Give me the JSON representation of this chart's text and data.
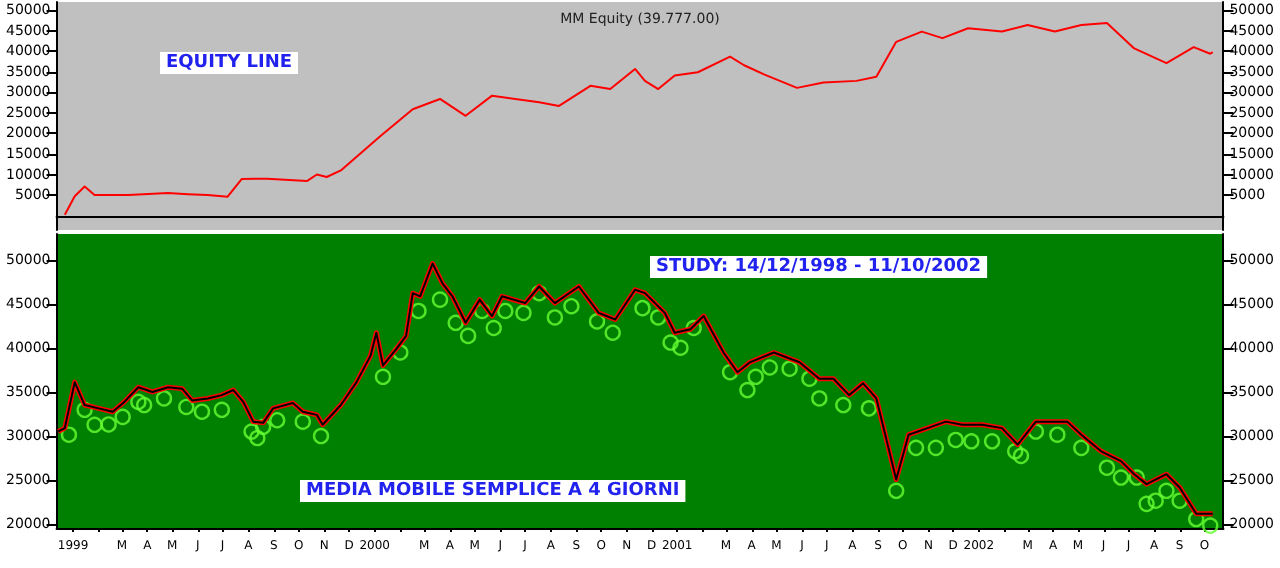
{
  "chart_data": [
    {
      "type": "line",
      "title": "MM Equity (39.777.00)",
      "annotations": [
        "EQUITY LINE"
      ],
      "xlim": [
        "1998-12-12",
        "2002-10-24"
      ],
      "ylim": [
        -3500,
        52000
      ],
      "yticks": [
        5000,
        10000,
        15000,
        20000,
        25000,
        30000,
        35000,
        40000,
        45000,
        50000
      ],
      "y2lim": [
        -3500,
        52000
      ],
      "y2ticks": [
        5000,
        10000,
        15000,
        20000,
        25000,
        30000,
        35000,
        40000,
        45000,
        50000
      ],
      "tick_labels": "y",
      "grid": false,
      "marker": "none",
      "line_style": "solid",
      "series": [
        {
          "color": "#ff0000",
          "x": [
            "1998-12-22",
            "1999-01-03",
            "1999-01-15",
            "1999-01-27",
            "1999-03-09",
            "1999-04-26",
            "1999-05-20",
            "1999-06-13",
            "1999-07-07",
            "1999-07-24",
            "1999-08-24",
            "1999-10-11",
            "1999-10-23",
            "1999-11-04",
            "1999-11-21",
            "2000-01-08",
            "2000-02-16",
            "2000-03-20",
            "2000-04-20",
            "2000-05-22",
            "2000-07-18",
            "2000-08-11",
            "2000-09-18",
            "2000-10-12",
            "2000-11-11",
            "2000-11-23",
            "2000-12-09",
            "2000-12-29",
            "2001-01-26",
            "2001-03-06",
            "2001-03-23",
            "2001-04-16",
            "2001-05-26",
            "2001-06-27",
            "2001-08-06",
            "2001-08-30",
            "2001-09-23",
            "2001-10-24",
            "2001-11-18",
            "2001-12-19",
            "2002-01-29",
            "2002-03-01",
            "2002-04-03",
            "2002-05-05",
            "2002-06-05",
            "2002-07-08",
            "2002-08-16",
            "2002-09-18",
            "2002-10-08",
            "2002-10-11"
          ],
          "values": [
            200,
            4700,
            7100,
            5000,
            5000,
            5500,
            5200,
            5000,
            4600,
            8900,
            9000,
            8400,
            10000,
            9400,
            11000,
            19400,
            25900,
            28400,
            24300,
            29200,
            27600,
            26700,
            31600,
            30800,
            35700,
            32800,
            30800,
            34100,
            34900,
            38700,
            36600,
            34400,
            31100,
            32400,
            32800,
            33800,
            42300,
            44800,
            43200,
            45600,
            44800,
            46400,
            44800,
            46400,
            46900,
            40700,
            37100,
            41000,
            39400,
            39777
          ]
        }
      ]
    },
    {
      "type": "line",
      "annotations": [
        "STUDY: 14/12/1998 - 11/10/2002",
        "MEDIA MOBILE SEMPLICE A 4 GIORNI"
      ],
      "xlim": [
        "1998-12-12",
        "2002-10-24"
      ],
      "xticks": [
        {
          "value": "1999-01-01",
          "label": "1999"
        },
        {
          "value": "1999-02-01",
          "label": null
        },
        {
          "value": "1999-03-01",
          "label": "M"
        },
        {
          "value": "1999-04-01",
          "label": "A"
        },
        {
          "value": "1999-05-01",
          "label": "M"
        },
        {
          "value": "1999-06-01",
          "label": "J"
        },
        {
          "value": "1999-07-01",
          "label": "J"
        },
        {
          "value": "1999-08-01",
          "label": "A"
        },
        {
          "value": "1999-09-01",
          "label": "S"
        },
        {
          "value": "1999-10-01",
          "label": "O"
        },
        {
          "value": "1999-11-01",
          "label": "N"
        },
        {
          "value": "1999-12-01",
          "label": "D"
        },
        {
          "value": "2000-01-01",
          "label": "2000"
        },
        {
          "value": "2000-02-01",
          "label": null
        },
        {
          "value": "2000-03-01",
          "label": "M"
        },
        {
          "value": "2000-04-01",
          "label": "A"
        },
        {
          "value": "2000-05-01",
          "label": "M"
        },
        {
          "value": "2000-06-01",
          "label": "J"
        },
        {
          "value": "2000-07-01",
          "label": "J"
        },
        {
          "value": "2000-08-01",
          "label": "A"
        },
        {
          "value": "2000-09-01",
          "label": "S"
        },
        {
          "value": "2000-10-01",
          "label": "O"
        },
        {
          "value": "2000-11-01",
          "label": "N"
        },
        {
          "value": "2000-12-01",
          "label": "D"
        },
        {
          "value": "2001-01-01",
          "label": "2001"
        },
        {
          "value": "2001-02-01",
          "label": null
        },
        {
          "value": "2001-03-01",
          "label": "M"
        },
        {
          "value": "2001-04-01",
          "label": "A"
        },
        {
          "value": "2001-05-01",
          "label": "M"
        },
        {
          "value": "2001-06-01",
          "label": "J"
        },
        {
          "value": "2001-07-01",
          "label": "J"
        },
        {
          "value": "2001-08-01",
          "label": "A"
        },
        {
          "value": "2001-09-01",
          "label": "S"
        },
        {
          "value": "2001-10-01",
          "label": "O"
        },
        {
          "value": "2001-11-01",
          "label": "N"
        },
        {
          "value": "2001-12-01",
          "label": "D"
        },
        {
          "value": "2002-01-01",
          "label": "2002"
        },
        {
          "value": "2002-02-01",
          "label": null
        },
        {
          "value": "2002-03-01",
          "label": "M"
        },
        {
          "value": "2002-04-01",
          "label": "A"
        },
        {
          "value": "2002-05-01",
          "label": "M"
        },
        {
          "value": "2002-06-01",
          "label": "J"
        },
        {
          "value": "2002-07-01",
          "label": "J"
        },
        {
          "value": "2002-08-01",
          "label": "A"
        },
        {
          "value": "2002-09-01",
          "label": "S"
        },
        {
          "value": "2002-10-01",
          "label": "O"
        }
      ],
      "ylim": [
        19500,
        53000
      ],
      "yticks": [
        20000,
        25000,
        30000,
        35000,
        40000,
        45000,
        50000
      ],
      "y2lim": [
        19500,
        53000
      ],
      "y2ticks": [
        20000,
        25000,
        30000,
        35000,
        40000,
        45000,
        50000
      ],
      "grid": false,
      "marker": "none",
      "line_style": "solid",
      "series": [
        {
          "color": "#ff0000",
          "x": [
            "1998-12-14",
            "1998-12-22",
            "1999-01-03",
            "1999-01-15",
            "1999-02-01",
            "1999-02-18",
            "1999-03-04",
            "1999-03-21",
            "1999-04-07",
            "1999-04-26",
            "1999-05-13",
            "1999-05-25",
            "1999-06-13",
            "1999-06-30",
            "1999-07-14",
            "1999-07-26",
            "1999-08-07",
            "1999-08-19",
            "1999-08-31",
            "1999-09-24",
            "1999-10-06",
            "1999-10-23",
            "1999-10-30",
            "1999-11-21",
            "1999-12-10",
            "1999-12-27",
            "2000-01-03",
            "2000-01-11",
            "2000-01-27",
            "2000-02-08",
            "2000-02-16",
            "2000-02-25",
            "2000-03-11",
            "2000-03-23",
            "2000-04-04",
            "2000-04-20",
            "2000-05-07",
            "2000-05-22",
            "2000-06-03",
            "2000-07-01",
            "2000-07-18",
            "2000-08-06",
            "2000-09-04",
            "2000-09-28",
            "2000-10-18",
            "2000-11-11",
            "2000-11-23",
            "2000-12-17",
            "2000-12-29",
            "2001-01-17",
            "2001-02-02",
            "2001-02-26",
            "2001-03-15",
            "2001-03-30",
            "2001-04-28",
            "2001-05-29",
            "2001-06-22",
            "2001-07-09",
            "2001-07-28",
            "2001-08-14",
            "2001-08-30",
            "2001-09-23",
            "2001-10-08",
            "2001-10-31",
            "2001-11-22",
            "2001-12-12",
            "2002-01-05",
            "2002-01-29",
            "2002-02-17",
            "2002-03-11",
            "2002-04-03",
            "2002-04-18",
            "2002-05-05",
            "2002-05-29",
            "2002-06-22",
            "2002-07-08",
            "2002-07-23",
            "2002-08-16",
            "2002-09-01",
            "2002-09-21",
            "2002-10-08",
            "2002-10-11"
          ],
          "values": [
            30500,
            30880,
            36120,
            33510,
            33130,
            32750,
            33870,
            35540,
            35000,
            35540,
            35380,
            34030,
            34260,
            34640,
            35220,
            33870,
            31620,
            31480,
            33130,
            33740,
            32750,
            32390,
            31270,
            33510,
            36120,
            39140,
            41750,
            38020,
            39890,
            41390,
            46260,
            45900,
            49640,
            47380,
            45900,
            42880,
            45520,
            43650,
            45900,
            45130,
            47020,
            45130,
            47020,
            44010,
            43260,
            46640,
            46260,
            44010,
            41750,
            42140,
            43650,
            39500,
            37250,
            38380,
            39500,
            38380,
            36510,
            36510,
            34640,
            35990,
            34260,
            25020,
            30130,
            30880,
            31620,
            31260,
            31260,
            30880,
            29010,
            31620,
            31620,
            31620,
            30130,
            28240,
            27120,
            25630,
            24500,
            25630,
            24120,
            21130,
            21130,
            21130
          ]
        },
        {
          "color": "#000000",
          "x": [
            "1998-12-14",
            "1998-12-22",
            "1999-01-03",
            "1999-01-15",
            "1999-02-01",
            "1999-02-18",
            "1999-03-04",
            "1999-03-21",
            "1999-04-07",
            "1999-04-26",
            "1999-05-13",
            "1999-05-25",
            "1999-06-13",
            "1999-06-30",
            "1999-07-14",
            "1999-07-26",
            "1999-08-07",
            "1999-08-19",
            "1999-08-31",
            "1999-09-24",
            "1999-10-06",
            "1999-10-23",
            "1999-10-30",
            "1999-11-21",
            "1999-12-10",
            "1999-12-27",
            "2000-01-03",
            "2000-01-11",
            "2000-01-27",
            "2000-02-08",
            "2000-02-16",
            "2000-02-25",
            "2000-03-11",
            "2000-03-23",
            "2000-04-04",
            "2000-04-20",
            "2000-05-07",
            "2000-05-22",
            "2000-06-03",
            "2000-07-01",
            "2000-07-18",
            "2000-08-06",
            "2000-09-04",
            "2000-09-28",
            "2000-10-18",
            "2000-11-11",
            "2000-11-23",
            "2000-12-17",
            "2000-12-29",
            "2001-01-17",
            "2001-02-02",
            "2001-02-26",
            "2001-03-15",
            "2001-03-30",
            "2001-04-28",
            "2001-05-29",
            "2001-06-22",
            "2001-07-09",
            "2001-07-28",
            "2001-08-14",
            "2001-08-30",
            "2001-09-23",
            "2001-10-08",
            "2001-10-31",
            "2001-11-22",
            "2001-12-12",
            "2002-01-05",
            "2002-01-29",
            "2002-02-17",
            "2002-03-11",
            "2002-04-03",
            "2002-04-18",
            "2002-05-05",
            "2002-05-29",
            "2002-06-22",
            "2002-07-08",
            "2002-07-23",
            "2002-08-16",
            "2002-09-01",
            "2002-09-21",
            "2002-10-08",
            "2002-10-11"
          ],
          "values": [
            30500,
            30880,
            36120,
            33510,
            33130,
            32750,
            33870,
            35540,
            35000,
            35540,
            35380,
            34030,
            34260,
            34640,
            35220,
            33870,
            31620,
            31480,
            33130,
            33740,
            32750,
            32390,
            31270,
            33510,
            36120,
            39140,
            41750,
            38020,
            39890,
            41390,
            46260,
            45900,
            49640,
            47380,
            45900,
            42880,
            45520,
            43650,
            45900,
            45130,
            47020,
            45130,
            47020,
            44010,
            43260,
            46640,
            46260,
            44010,
            41750,
            42140,
            43650,
            39500,
            37250,
            38380,
            39500,
            38380,
            36510,
            36510,
            34640,
            35990,
            34260,
            25020,
            30130,
            30880,
            31620,
            31260,
            31260,
            30880,
            29010,
            31620,
            31620,
            31620,
            30130,
            28240,
            27120,
            25630,
            24500,
            25630,
            24120,
            21130,
            21130,
            21130
          ]
        },
        {
          "type": "scatter",
          "marker": "circle",
          "color": "#66ff33",
          "x": [
            "1998-12-27",
            "1999-01-15",
            "1999-01-27",
            "1999-02-13",
            "1999-03-02",
            "1999-03-21",
            "1999-03-28",
            "1999-04-21",
            "1999-05-18",
            "1999-06-06",
            "1999-06-30",
            "1999-08-05",
            "1999-08-12",
            "1999-08-19",
            "1999-09-05",
            "1999-10-06",
            "1999-10-28",
            "2000-01-11",
            "2000-02-01",
            "2000-02-23",
            "2000-03-20",
            "2000-04-08",
            "2000-04-23",
            "2000-05-10",
            "2000-05-24",
            "2000-06-07",
            "2000-06-29",
            "2000-07-18",
            "2000-08-06",
            "2000-08-26",
            "2000-09-26",
            "2000-10-15",
            "2000-11-20",
            "2000-12-09",
            "2000-12-24",
            "2001-01-05",
            "2001-01-21",
            "2001-03-06",
            "2001-03-27",
            "2001-04-06",
            "2001-04-23",
            "2001-05-17",
            "2001-06-10",
            "2001-06-22",
            "2001-07-21",
            "2001-08-21",
            "2001-09-23",
            "2001-10-17",
            "2001-11-10",
            "2001-12-04",
            "2001-12-23",
            "2002-01-17",
            "2002-02-14",
            "2002-02-21",
            "2002-03-11",
            "2002-04-06",
            "2002-05-05",
            "2002-06-05",
            "2002-06-22",
            "2002-07-11",
            "2002-07-23",
            "2002-08-03",
            "2002-08-16",
            "2002-09-01",
            "2002-09-21",
            "2002-10-08"
          ],
          "values": [
            30130,
            32970,
            31260,
            31300,
            32160,
            33870,
            33510,
            34260,
            33290,
            32750,
            32970,
            30490,
            29750,
            31030,
            31780,
            31620,
            29980,
            36730,
            39500,
            44230,
            45520,
            42880,
            41390,
            44230,
            42290,
            44230,
            44010,
            46260,
            43490,
            44770,
            43040,
            41750,
            44550,
            43490,
            40630,
            40040,
            42290,
            37250,
            35220,
            36730,
            37790,
            37650,
            36510,
            34260,
            33510,
            33130,
            23740,
            28630,
            28630,
            29530,
            29380,
            29380,
            28240,
            27720,
            30490,
            30130,
            28630,
            26370,
            25250,
            25250,
            22250,
            22610,
            23740,
            22610,
            20520,
            19770
          ]
        }
      ]
    }
  ]
}
